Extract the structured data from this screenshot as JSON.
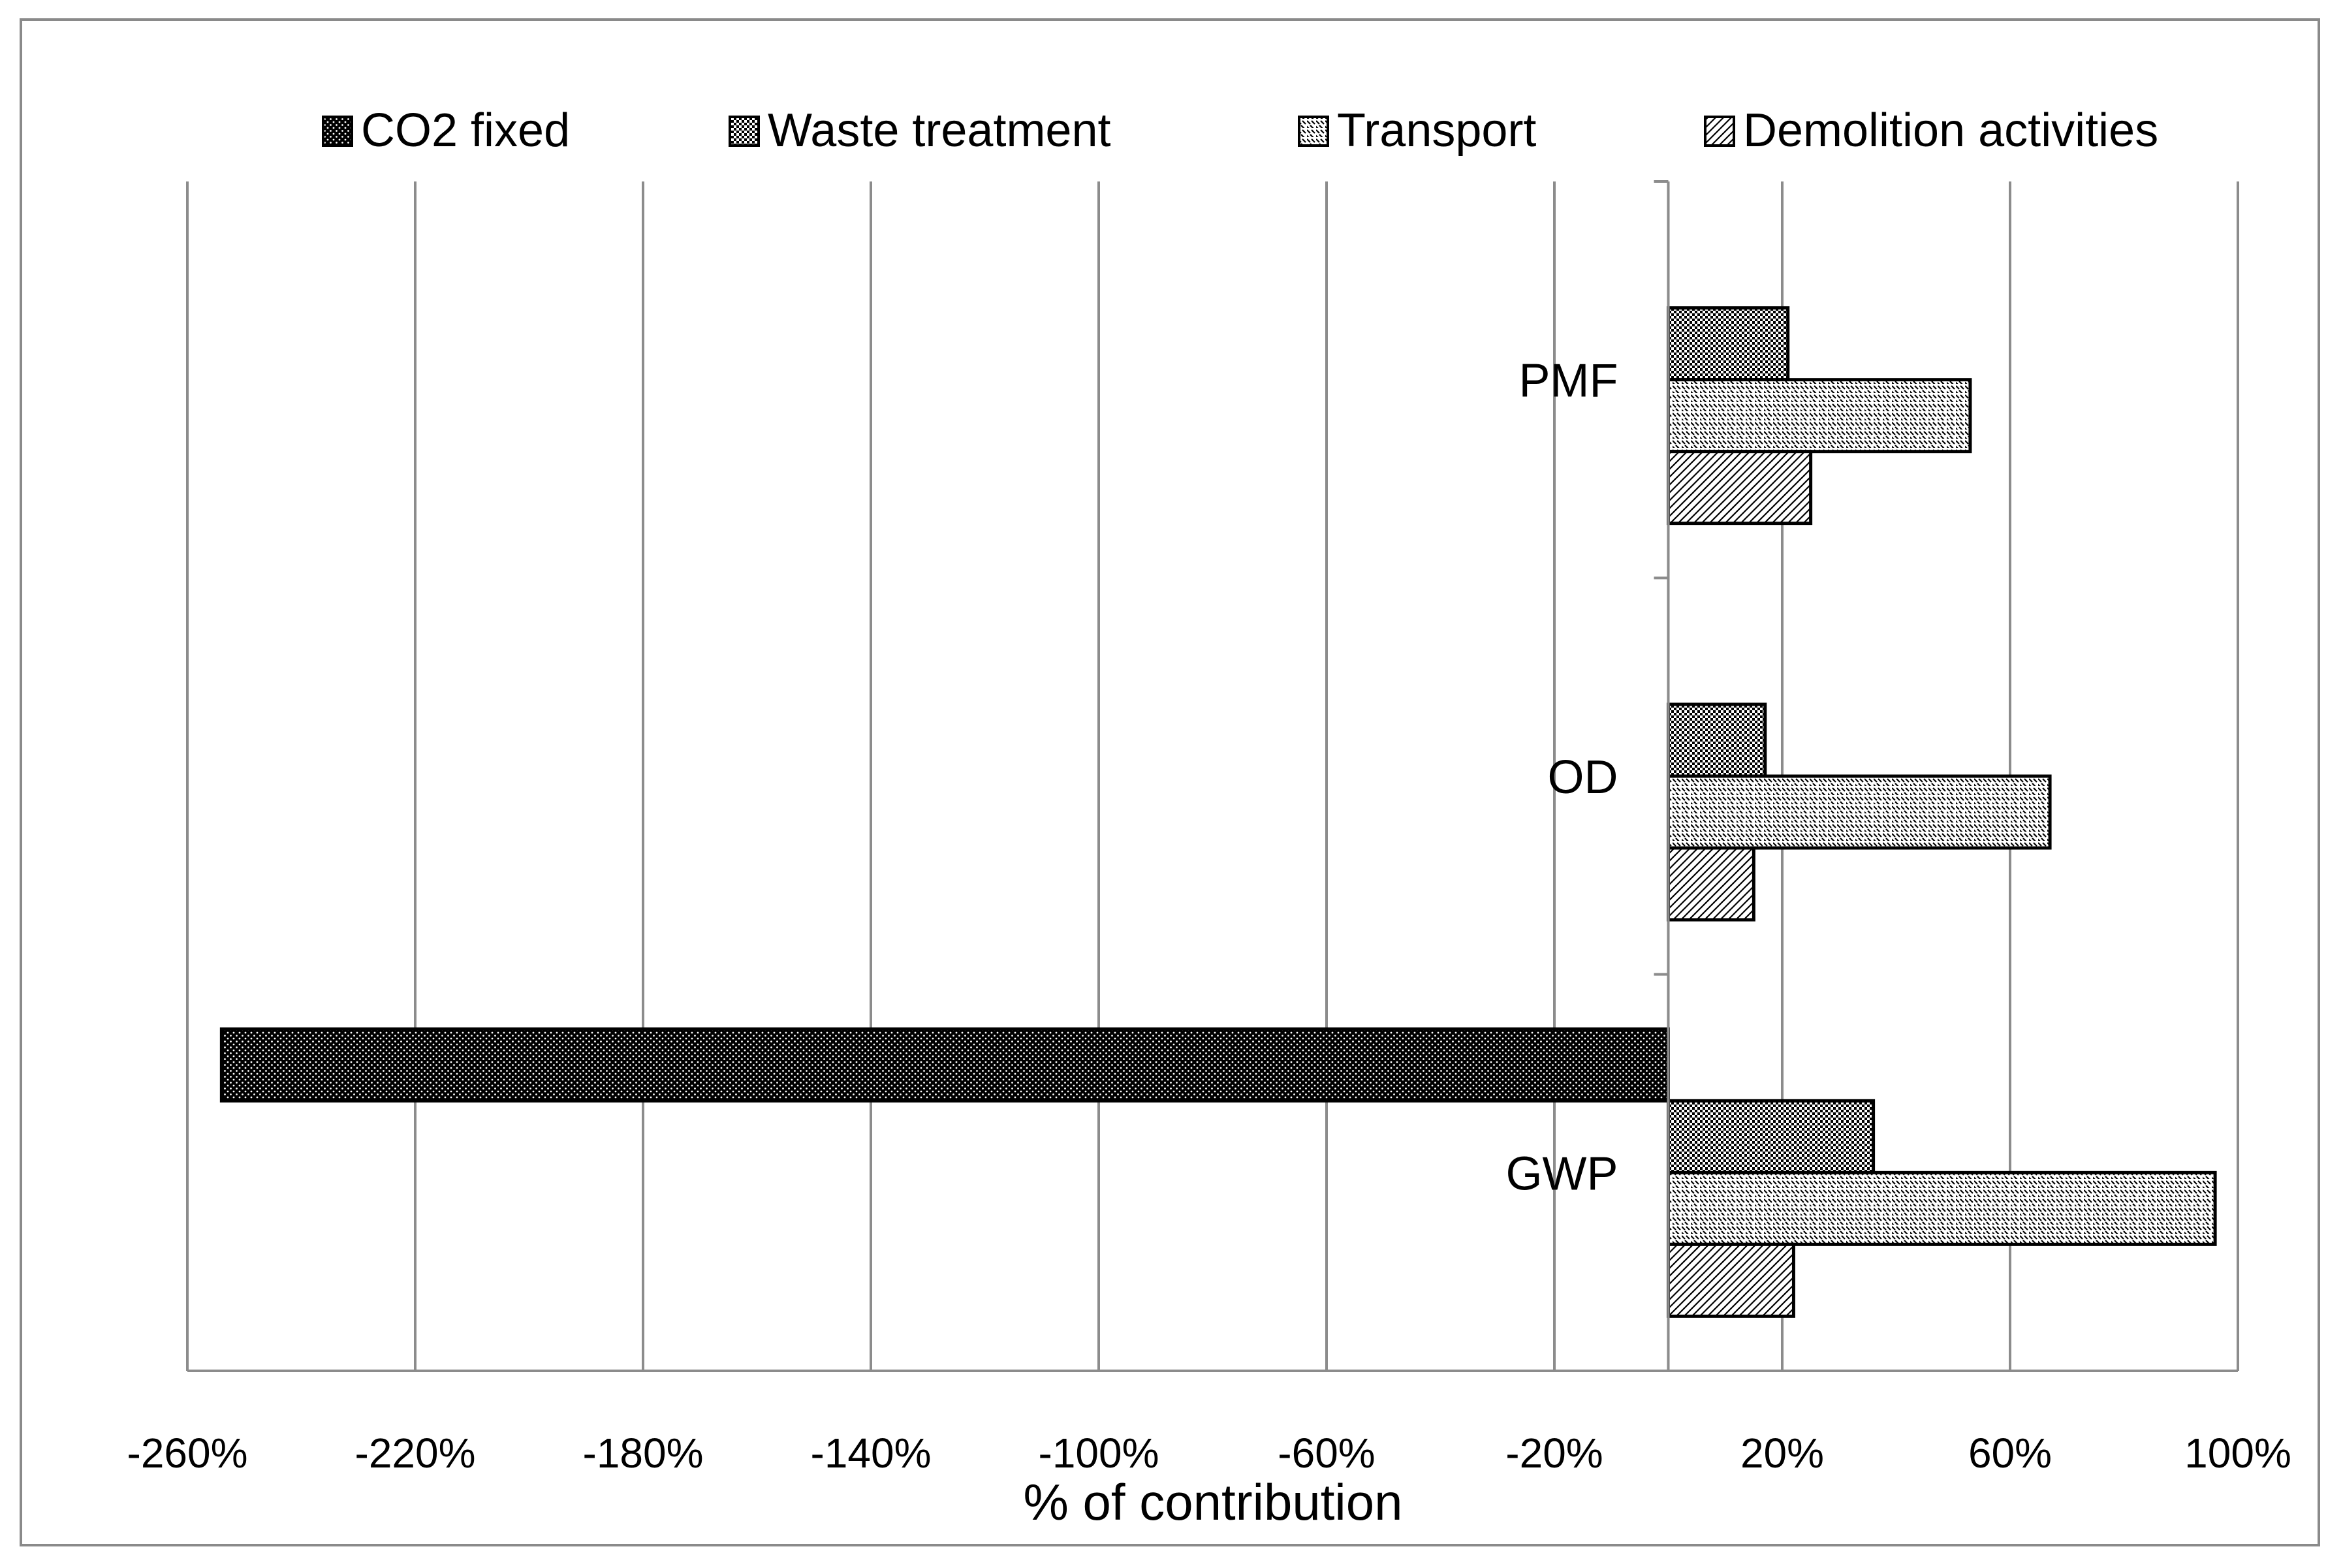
{
  "chart_data": {
    "type": "bar",
    "orientation": "horizontal",
    "categories": [
      "PMF",
      "OD",
      "GWP"
    ],
    "series": [
      {
        "name": "CO2 fixed",
        "pattern": "dots-dark",
        "values": [
          0,
          0,
          -254
        ]
      },
      {
        "name": "Waste treatment",
        "pattern": "checker",
        "values": [
          21,
          17,
          36
        ]
      },
      {
        "name": "Transport",
        "pattern": "diag-light",
        "values": [
          53,
          67,
          96
        ]
      },
      {
        "name": "Demolition activities",
        "pattern": "diag-hatch",
        "values": [
          25,
          15,
          22
        ]
      }
    ],
    "xlim": [
      -260,
      100
    ],
    "xticks": [
      -260,
      -220,
      -180,
      -140,
      -100,
      -60,
      -20,
      20,
      60,
      100
    ],
    "xtick_labels": [
      "-260%",
      "-220%",
      "-180%",
      "-140%",
      "-100%",
      "-60%",
      "-20%",
      "20%",
      "60%",
      "100%"
    ],
    "xlabel": "% of contribution",
    "ylabel": "",
    "grid": true,
    "legend_position": "top"
  }
}
